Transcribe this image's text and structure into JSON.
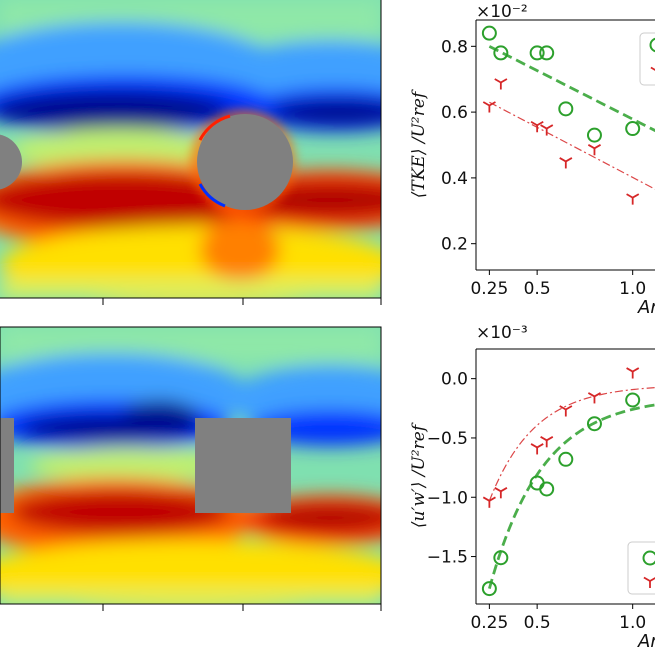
{
  "chart_data": [
    {
      "type": "heatmap",
      "panel": "top-left",
      "obstacle_shape": "circle",
      "colormap": [
        "#00007f",
        "#0030ff",
        "#3fa0ff",
        "#7fe0d0",
        "#c0f070",
        "#ffe000",
        "#ff6000",
        "#c00000",
        "#7f0000"
      ],
      "obstacle_color": "#808080"
    },
    {
      "type": "scatter",
      "panel": "top-right",
      "ylabel": "⟨TKE⟩ /U²ref",
      "xlabel": "Ar",
      "y_exponent": "×10⁻²",
      "ylim": [
        0.12,
        0.88
      ],
      "xlim": [
        0.18,
        1.3
      ],
      "x_ticks": [
        "0.25",
        "0.5",
        "1.0"
      ],
      "y_ticks": [
        "0.2",
        "0.4",
        "0.6",
        "0.8"
      ],
      "grid": false,
      "legend": "top-right",
      "series": [
        {
          "marker": "circle",
          "color": "#2ca02c",
          "x": [
            0.25,
            0.31,
            0.5,
            0.55,
            0.65,
            0.8,
            1.0
          ],
          "y": [
            0.84,
            0.78,
            0.78,
            0.78,
            0.61,
            0.53,
            0.55
          ],
          "fit": {
            "style": "dashed",
            "x": [
              0.25,
              1.3
            ],
            "y": [
              0.8,
              0.49
            ]
          }
        },
        {
          "marker": "tri",
          "color": "#d62728",
          "x": [
            0.25,
            0.31,
            0.5,
            0.55,
            0.65,
            0.8,
            1.0
          ],
          "y": [
            0.62,
            0.69,
            0.56,
            0.55,
            0.45,
            0.49,
            0.34
          ],
          "fit": {
            "style": "dashdot",
            "x": [
              0.25,
              1.3
            ],
            "y": [
              0.63,
              0.31
            ]
          }
        }
      ]
    },
    {
      "type": "heatmap",
      "panel": "bottom-left",
      "obstacle_shape": "square",
      "colormap": [
        "#00007f",
        "#0030ff",
        "#3fa0ff",
        "#7fe0d0",
        "#c0f070",
        "#ffe000",
        "#ff6000",
        "#c00000",
        "#7f0000"
      ],
      "obstacle_color": "#808080"
    },
    {
      "type": "scatter",
      "panel": "bottom-right",
      "ylabel": "⟨u′w′⟩ /U²ref",
      "xlabel": "Ar",
      "y_exponent": "×10⁻³",
      "ylim": [
        -1.9,
        0.25
      ],
      "xlim": [
        0.18,
        1.3
      ],
      "x_ticks": [
        "0.25",
        "0.5",
        "1.0"
      ],
      "y_ticks": [
        "0.0",
        "−0.5",
        "−1.0",
        "−1.5"
      ],
      "grid": false,
      "legend": "bottom-right",
      "series": [
        {
          "marker": "circle",
          "color": "#2ca02c",
          "x": [
            0.25,
            0.31,
            0.5,
            0.55,
            0.65,
            0.8,
            1.0
          ],
          "y": [
            -1.77,
            -1.51,
            -0.88,
            -0.93,
            -0.68,
            -0.38,
            -0.18
          ],
          "fit": {
            "style": "dashed",
            "curve": "saturating",
            "x0": 0.25,
            "y0": -1.77,
            "asymptote": -0.15,
            "rate": 3.6
          }
        },
        {
          "marker": "tri",
          "color": "#d62728",
          "x": [
            0.25,
            0.31,
            0.5,
            0.55,
            0.65,
            0.8,
            1.0
          ],
          "y": [
            -1.03,
            -0.95,
            -0.58,
            -0.52,
            -0.26,
            -0.15,
            0.06
          ],
          "fit": {
            "style": "dashdot",
            "curve": "saturating",
            "x0": 0.25,
            "y0": -1.03,
            "asymptote": -0.05,
            "rate": 4.2
          }
        }
      ]
    }
  ]
}
